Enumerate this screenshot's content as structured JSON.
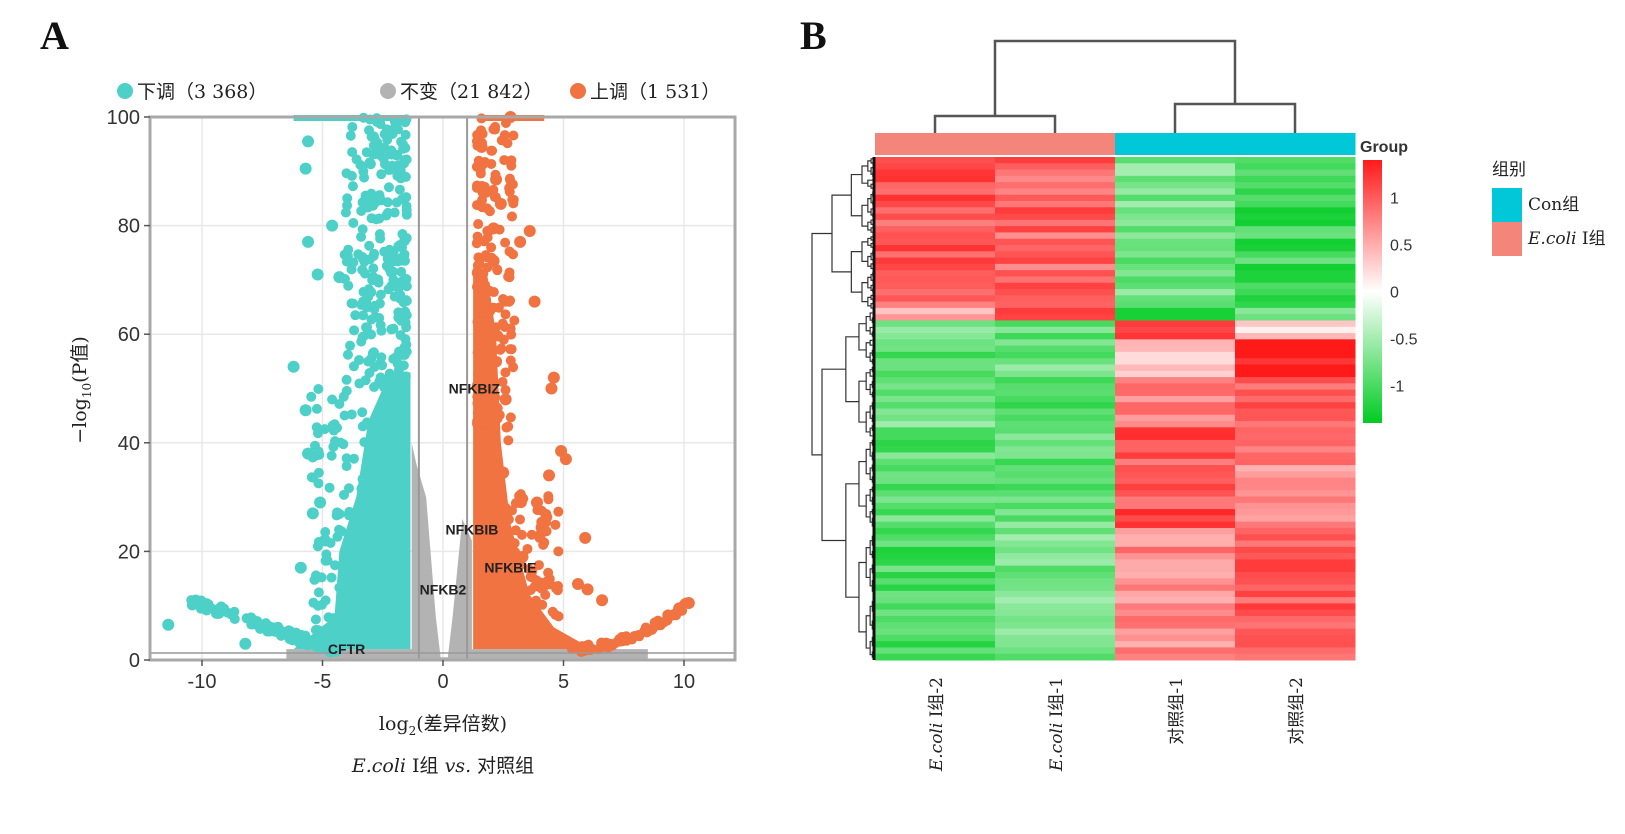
{
  "panels": {
    "a_label": "A",
    "b_label": "B"
  },
  "chart_data": [
    {
      "type": "scatter",
      "subtype": "volcano",
      "title": "",
      "legend": {
        "placement": "top",
        "entries": [
          {
            "label": "下调（3 368）",
            "name": "down",
            "count": 3368,
            "color": "#4dd0c8"
          },
          {
            "label": "不变（21 842）",
            "name": "unchanged",
            "count": 21842,
            "color": "#b3b3b3"
          },
          {
            "label": "上调（1 531）",
            "name": "up",
            "count": 1531,
            "color": "#f07341"
          }
        ]
      },
      "xlabel": "log2(差异倍数)",
      "xlabel_main": "log",
      "xlabel_sub": "2",
      "xlabel_rest": "(差异倍数)",
      "subtitle": "E.coli I组 vs. 对照组",
      "subtitle_italic": "E.coli",
      "subtitle_rest": " I组 ",
      "subtitle_vs": "vs.",
      "subtitle_end": " 对照组",
      "ylabel": "−log10(P值)",
      "ylabel_prefix": "−log",
      "ylabel_sub": "10",
      "ylabel_rest": "(P值)",
      "xlim": [
        -12,
        12
      ],
      "ylim": [
        0,
        100
      ],
      "xticks": [
        -10,
        -5,
        0,
        5,
        10
      ],
      "yticks": [
        0,
        20,
        40,
        60,
        80,
        100
      ],
      "xtick_labels": [
        "-10",
        "-5",
        "0",
        "5",
        "10"
      ],
      "ytick_labels": [
        "0",
        "20",
        "40",
        "60",
        "80",
        "100"
      ],
      "grid": true,
      "threshold_lines": {
        "log2fc": [
          -1,
          1
        ],
        "neg_log10_p": 1.3
      },
      "annotations": [
        {
          "text": "NFKBIZ",
          "x": 1.3,
          "y": 50
        },
        {
          "text": "NFKBIB",
          "x": 1.2,
          "y": 24
        },
        {
          "text": "NFKBIE",
          "x": 2.8,
          "y": 17
        },
        {
          "text": "NFKB2",
          "x": 0.0,
          "y": 13
        },
        {
          "text": "CFTR",
          "x": -4.0,
          "y": 2
        }
      ],
      "outlier_points": {
        "down": [
          [
            -5.6,
            95.5
          ],
          [
            -5.7,
            90.5
          ],
          [
            -4.6,
            80
          ],
          [
            -5.6,
            77
          ],
          [
            -5.2,
            71
          ],
          [
            -4.3,
            70.5
          ],
          [
            -6.2,
            54
          ],
          [
            -5.7,
            46
          ],
          [
            -5.6,
            38
          ],
          [
            -5.1,
            29
          ],
          [
            -5.4,
            27
          ],
          [
            -5.9,
            17
          ],
          [
            -4.9,
            22
          ],
          [
            -11.4,
            6.5
          ],
          [
            -8.2,
            3
          ],
          [
            -6.0,
            4
          ]
        ],
        "up": [
          [
            2.8,
            100
          ],
          [
            1.6,
            94.5
          ],
          [
            2.2,
            88.5
          ],
          [
            2.4,
            84
          ],
          [
            2.1,
            79.5
          ],
          [
            3.6,
            79
          ],
          [
            3.2,
            77
          ],
          [
            2.1,
            73.5
          ],
          [
            3.8,
            66
          ],
          [
            4.6,
            52
          ],
          [
            4.5,
            50
          ],
          [
            2.6,
            48
          ],
          [
            4.9,
            38.5
          ],
          [
            5.1,
            37
          ],
          [
            4.4,
            34
          ],
          [
            2.5,
            34.5
          ],
          [
            3.9,
            29
          ],
          [
            4.1,
            24.5
          ],
          [
            5.9,
            22.5
          ],
          [
            3.3,
            19
          ],
          [
            5.6,
            14
          ],
          [
            6.0,
            13
          ],
          [
            6.6,
            11
          ],
          [
            10.2,
            10.5
          ],
          [
            9.8,
            9.5
          ]
        ]
      }
    },
    {
      "type": "heatmap",
      "columns": [
        "E.coli I组-2",
        "E.coli I组-1",
        "对照组-1",
        "对照组-2"
      ],
      "column_labels": [
        {
          "italic": "E.coli",
          "rest": " I组-2"
        },
        {
          "italic": "E.coli",
          "rest": " I组-1"
        },
        {
          "italic": "",
          "rest": "对照组-1"
        },
        {
          "italic": "",
          "rest": "对照组-2"
        }
      ],
      "column_groups": [
        "E.coli I组",
        "E.coli I组",
        "Con组",
        "Con组"
      ],
      "group_annotation_title": "Group",
      "group_legend": {
        "title": "组别",
        "entries": [
          {
            "label": "Con组",
            "italic": "",
            "rest": "Con组",
            "color": "#00c8d8"
          },
          {
            "label": "E.coli I组",
            "italic": "E.coli",
            "rest": " I组",
            "color": "#f4857a"
          }
        ]
      },
      "colorbar": {
        "range": [
          -1.4,
          1.4
        ],
        "ticks": [
          1,
          0.5,
          0,
          -0.5,
          -1
        ],
        "tick_labels": [
          "1",
          "0.5",
          "0",
          "-0.5",
          "-1"
        ],
        "low_color": "#00cc22",
        "mid_color": "#ffffff",
        "high_color": "#ff1a1a"
      },
      "column_dendrogram": "((E.coli I组-2, E.coli I组-1), (对照组-1, 对照组-2))",
      "row_dendrogram": true,
      "row_blocks": [
        {
          "rows_fraction": 0.3,
          "values": [
            1.0,
            0.95,
            -0.75,
            -1.05
          ]
        },
        {
          "rows_fraction": 0.03,
          "values": [
            0.6,
            1.2,
            -1.0,
            -0.7
          ]
        },
        {
          "rows_fraction": 0.04,
          "values": [
            -0.8,
            -0.9,
            1.3,
            0.2
          ]
        },
        {
          "rows_fraction": 0.08,
          "values": [
            -0.85,
            -0.8,
            0.2,
            1.35
          ]
        },
        {
          "rows_fraction": 0.1,
          "values": [
            -0.75,
            -1.05,
            0.75,
            1.05
          ]
        },
        {
          "rows_fraction": 0.2,
          "values": [
            -0.9,
            -0.85,
            1.05,
            0.75
          ]
        },
        {
          "rows_fraction": 0.25,
          "values": [
            -1.0,
            -0.75,
            0.75,
            1.0
          ]
        }
      ]
    }
  ]
}
